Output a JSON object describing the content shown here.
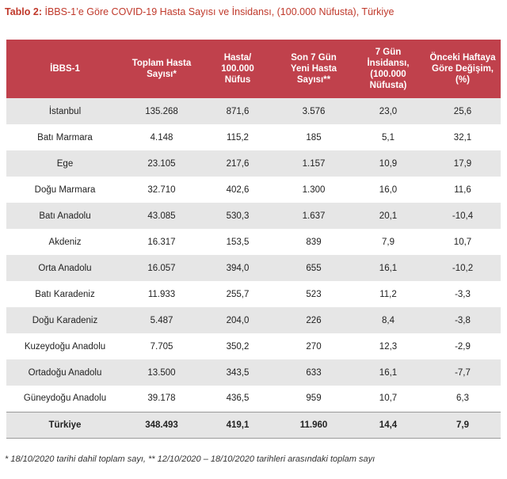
{
  "title": {
    "prefix": "Tablo 2:",
    "text": " İBBS-1’e Göre COVID-19 Hasta Sayısı ve İnsidansı, (100.000 Nüfusta), Türkiye"
  },
  "table": {
    "headers": [
      "İBBS-1",
      "Toplam Hasta\nSayısı*",
      "Hasta/\n100.000\nNüfus",
      "Son 7 Gün\nYeni Hasta\nSayısı**",
      "7 Gün İnsidansı,\n(100.000\nNüfusta)",
      "Önceki Haftaya\nGöre Değişim,\n(%)"
    ],
    "rows": [
      [
        "İstanbul",
        "135.268",
        "871,6",
        "3.576",
        "23,0",
        "25,6"
      ],
      [
        "Batı Marmara",
        "4.148",
        "115,2",
        "185",
        "5,1",
        "32,1"
      ],
      [
        "Ege",
        "23.105",
        "217,6",
        "1.157",
        "10,9",
        "17,9"
      ],
      [
        "Doğu Marmara",
        "32.710",
        "402,6",
        "1.300",
        "16,0",
        "11,6"
      ],
      [
        "Batı Anadolu",
        "43.085",
        "530,3",
        "1.637",
        "20,1",
        "-10,4"
      ],
      [
        "Akdeniz",
        "16.317",
        "153,5",
        "839",
        "7,9",
        "10,7"
      ],
      [
        "Orta Anadolu",
        "16.057",
        "394,0",
        "655",
        "16,1",
        "-10,2"
      ],
      [
        "Batı Karadeniz",
        "11.933",
        "255,7",
        "523",
        "11,2",
        "-3,3"
      ],
      [
        "Doğu Karadeniz",
        "5.487",
        "204,0",
        "226",
        "8,4",
        "-3,8"
      ],
      [
        "Kuzeydoğu Anadolu",
        "7.705",
        "350,2",
        "270",
        "12,3",
        "-2,9"
      ],
      [
        "Ortadoğu Anadolu",
        "13.500",
        "343,5",
        "633",
        "16,1",
        "-7,7"
      ],
      [
        "Güneydoğu Anadolu",
        "39.178",
        "436,5",
        "959",
        "10,7",
        "6,3"
      ]
    ],
    "total": [
      "Türkiye",
      "348.493",
      "419,1",
      "11.960",
      "14,4",
      "7,9"
    ]
  },
  "footnote": "* 18/10/2020 tarihi dahil toplam sayı, ** 12/10/2020 – 18/10/2020 tarihleri arasındaki toplam sayı"
}
